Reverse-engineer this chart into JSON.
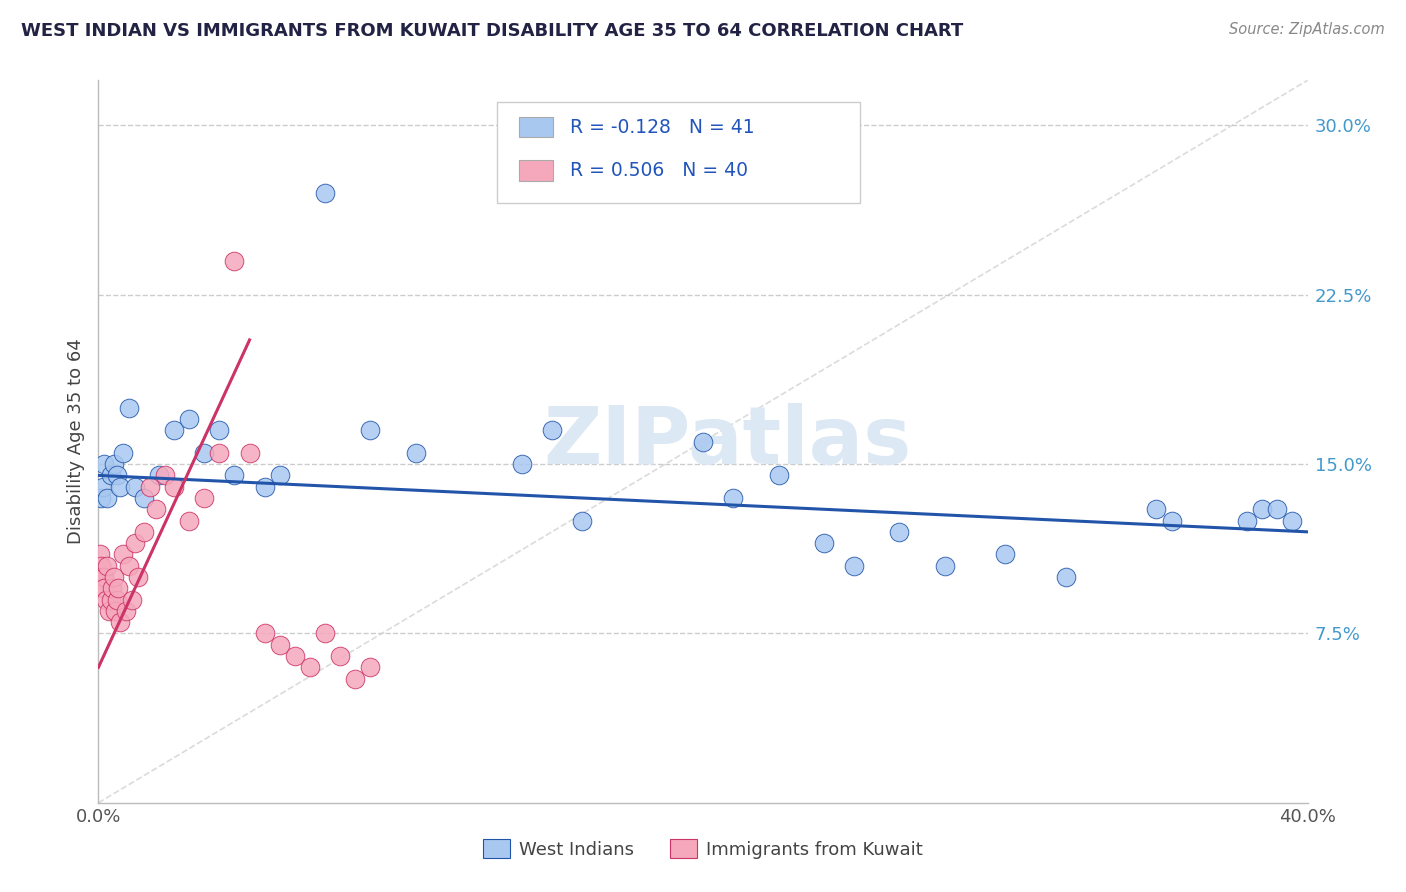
{
  "title": "WEST INDIAN VS IMMIGRANTS FROM KUWAIT DISABILITY AGE 35 TO 64 CORRELATION CHART",
  "source": "Source: ZipAtlas.com",
  "ylabel": "Disability Age 35 to 64",
  "legend_label1": "West Indians",
  "legend_label2": "Immigrants from Kuwait",
  "R1": -0.128,
  "N1": 41,
  "R2": 0.506,
  "N2": 40,
  "color_blue": "#A8C8F0",
  "color_pink": "#F5A8BC",
  "line_blue": "#2255AA",
  "line_pink": "#CC3366",
  "watermark_text": "ZIPatlas",
  "xlim": [
    0,
    40
  ],
  "ylim": [
    0,
    32
  ],
  "yticks": [
    7.5,
    15.0,
    22.5,
    30.0
  ],
  "xticks": [
    0,
    40
  ],
  "blue_x": [
    0.1,
    0.15,
    0.2,
    0.3,
    0.4,
    0.5,
    0.6,
    0.7,
    0.8,
    1.0,
    1.2,
    1.5,
    2.0,
    2.5,
    3.0,
    3.5,
    4.0,
    4.5,
    5.5,
    6.0,
    7.5,
    9.0,
    10.5,
    14.0,
    15.0,
    16.0,
    20.0,
    21.0,
    22.5,
    24.0,
    25.0,
    26.5,
    28.0,
    30.0,
    32.0,
    35.0,
    35.5,
    38.0,
    38.5,
    39.0,
    39.5
  ],
  "blue_y": [
    13.5,
    14.0,
    15.0,
    13.5,
    14.5,
    15.0,
    14.5,
    14.0,
    15.5,
    17.5,
    14.0,
    13.5,
    14.5,
    16.5,
    17.0,
    15.5,
    16.5,
    14.5,
    14.0,
    14.5,
    27.0,
    16.5,
    15.5,
    15.0,
    16.5,
    12.5,
    16.0,
    13.5,
    14.5,
    11.5,
    10.5,
    12.0,
    10.5,
    11.0,
    10.0,
    13.0,
    12.5,
    12.5,
    13.0,
    13.0,
    12.5
  ],
  "pink_x": [
    0.05,
    0.1,
    0.12,
    0.15,
    0.18,
    0.2,
    0.25,
    0.3,
    0.35,
    0.4,
    0.45,
    0.5,
    0.55,
    0.6,
    0.65,
    0.7,
    0.8,
    0.9,
    1.0,
    1.1,
    1.2,
    1.3,
    1.5,
    1.7,
    1.9,
    2.2,
    2.5,
    3.0,
    3.5,
    4.0,
    4.5,
    5.0,
    5.5,
    6.0,
    6.5,
    7.0,
    7.5,
    8.0,
    8.5,
    9.0
  ],
  "pink_y": [
    11.0,
    10.5,
    10.0,
    9.5,
    10.0,
    9.5,
    9.0,
    10.5,
    8.5,
    9.0,
    9.5,
    10.0,
    8.5,
    9.0,
    9.5,
    8.0,
    11.0,
    8.5,
    10.5,
    9.0,
    11.5,
    10.0,
    12.0,
    14.0,
    13.0,
    14.5,
    14.0,
    12.5,
    13.5,
    15.5,
    24.0,
    15.5,
    7.5,
    7.0,
    6.5,
    6.0,
    7.5,
    6.5,
    5.5,
    6.0
  ],
  "blue_trend_x": [
    0,
    40
  ],
  "blue_trend_y_start": 14.5,
  "blue_trend_y_end": 12.0,
  "pink_trend_x": [
    0,
    5
  ],
  "pink_trend_y_start": 6.0,
  "pink_trend_y_end": 20.5,
  "diag_line_x": [
    0,
    40
  ],
  "diag_line_y": [
    0,
    32
  ]
}
